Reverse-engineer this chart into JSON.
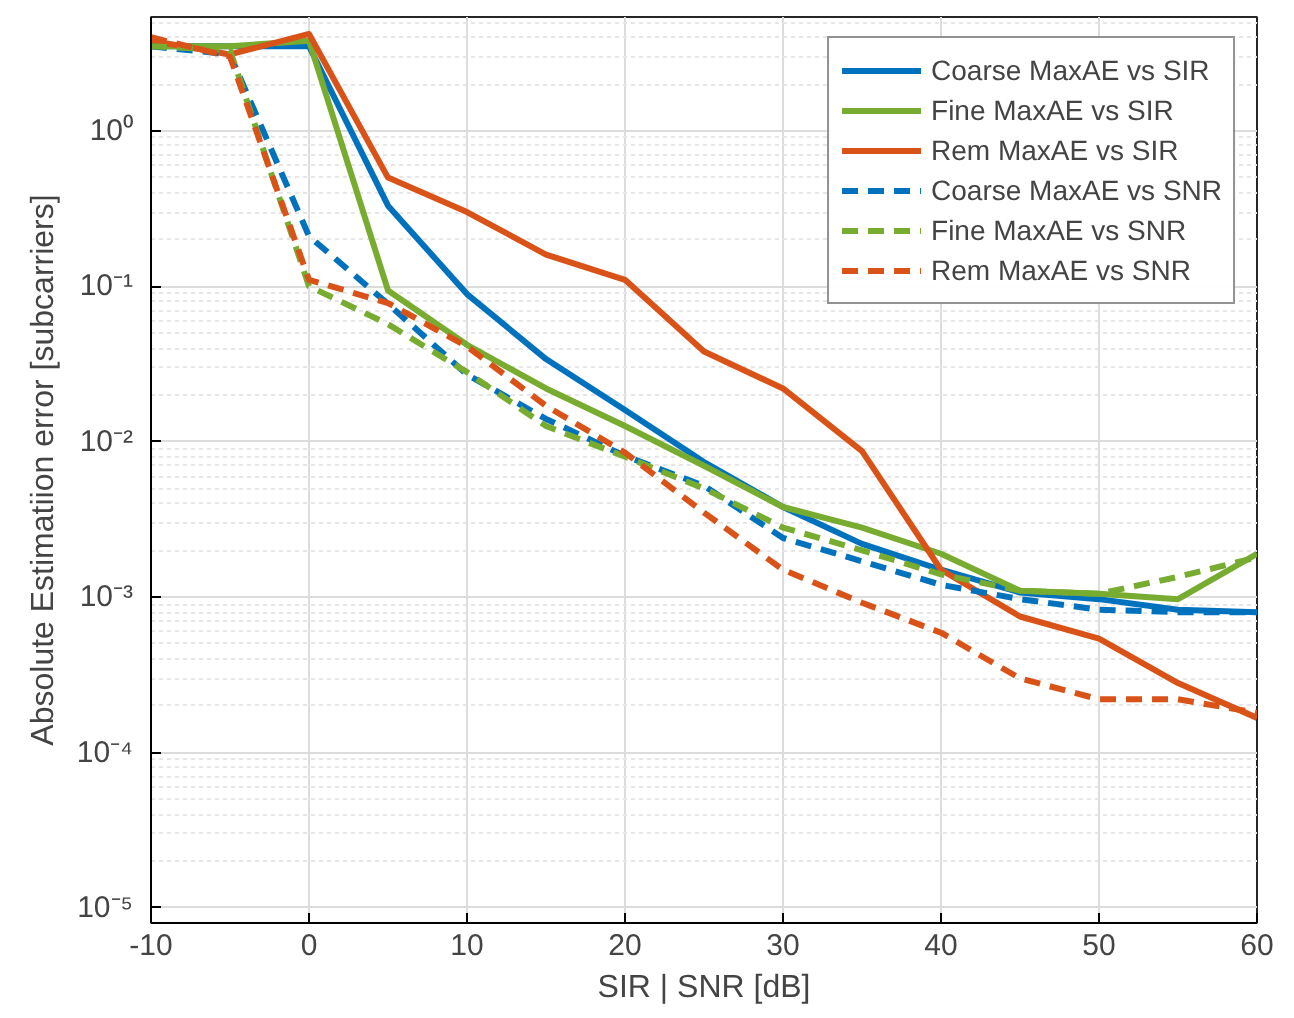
{
  "chart_data": {
    "type": "line",
    "xlabel": "SIR | SNR [dB]",
    "ylabel": "Absolute Estimatiion error [subcarriers]",
    "log": "y",
    "grid": true,
    "legend": "top right",
    "xlim": [
      -10,
      60
    ],
    "xticks": [
      -10,
      0,
      10,
      20,
      30,
      40,
      50,
      60
    ],
    "ylim": [
      8e-06,
      5.4
    ],
    "yticks": [
      {
        "value": 1e-05,
        "label": "10⁻⁵"
      },
      {
        "value": 0.0001,
        "label": "10⁻⁴"
      },
      {
        "value": 0.001,
        "label": "10⁻³"
      },
      {
        "value": 0.01,
        "label": "10⁻²"
      },
      {
        "value": 0.1,
        "label": "10⁻¹"
      },
      {
        "value": 1,
        "label": "10⁰"
      }
    ],
    "x": [
      -10,
      -5,
      0,
      5,
      10,
      15,
      20,
      25,
      30,
      35,
      40,
      45,
      50,
      55,
      60
    ],
    "series": [
      {
        "name": "Coarse MaxAE vs SIR",
        "color": "#0072bd",
        "line_style": "solid",
        "values": [
          3.5,
          3.5,
          3.5,
          0.33,
          0.089,
          0.034,
          0.016,
          0.0074,
          0.0038,
          0.0022,
          0.0015,
          0.00107,
          0.00097,
          0.00083,
          0.0008
        ]
      },
      {
        "name": "Fine MaxAE vs SIR",
        "color": "#77ac30",
        "line_style": "solid",
        "values": [
          3.5,
          3.5,
          3.8,
          0.094,
          0.042,
          0.022,
          0.0126,
          0.007,
          0.0038,
          0.0028,
          0.0019,
          0.0011,
          0.00105,
          0.00097,
          0.0019
        ]
      },
      {
        "name": "Rem MaxAE vs SIR",
        "color": "#d95319",
        "line_style": "solid",
        "values": [
          3.8,
          3.1,
          4.2,
          0.5,
          0.3,
          0.16,
          0.11,
          0.038,
          0.022,
          0.0087,
          0.0015,
          0.00075,
          0.00054,
          0.00028,
          0.000167
        ]
      },
      {
        "name": "Coarse MaxAE vs SNR",
        "color": "#0072bd",
        "line_style": "dashed",
        "values": [
          3.5,
          3.1,
          0.21,
          0.077,
          0.027,
          0.014,
          0.0081,
          0.0052,
          0.0024,
          0.0017,
          0.0012,
          0.00097,
          0.00083,
          0.0008,
          0.0008
        ]
      },
      {
        "name": "Fine MaxAE vs SNR",
        "color": "#77ac30",
        "line_style": "dashed",
        "values": [
          3.5,
          3.3,
          0.1,
          0.057,
          0.028,
          0.0126,
          0.008,
          0.005,
          0.0028,
          0.002,
          0.0014,
          0.0011,
          0.00105,
          0.00135,
          0.0018
        ]
      },
      {
        "name": "Rem MaxAE vs SNR",
        "color": "#d95319",
        "line_style": "dashed",
        "values": [
          4.0,
          3.0,
          0.11,
          0.078,
          0.041,
          0.017,
          0.0085,
          0.0035,
          0.0015,
          0.00092,
          0.00059,
          0.0003,
          0.00022,
          0.00022,
          0.00018
        ]
      }
    ]
  }
}
